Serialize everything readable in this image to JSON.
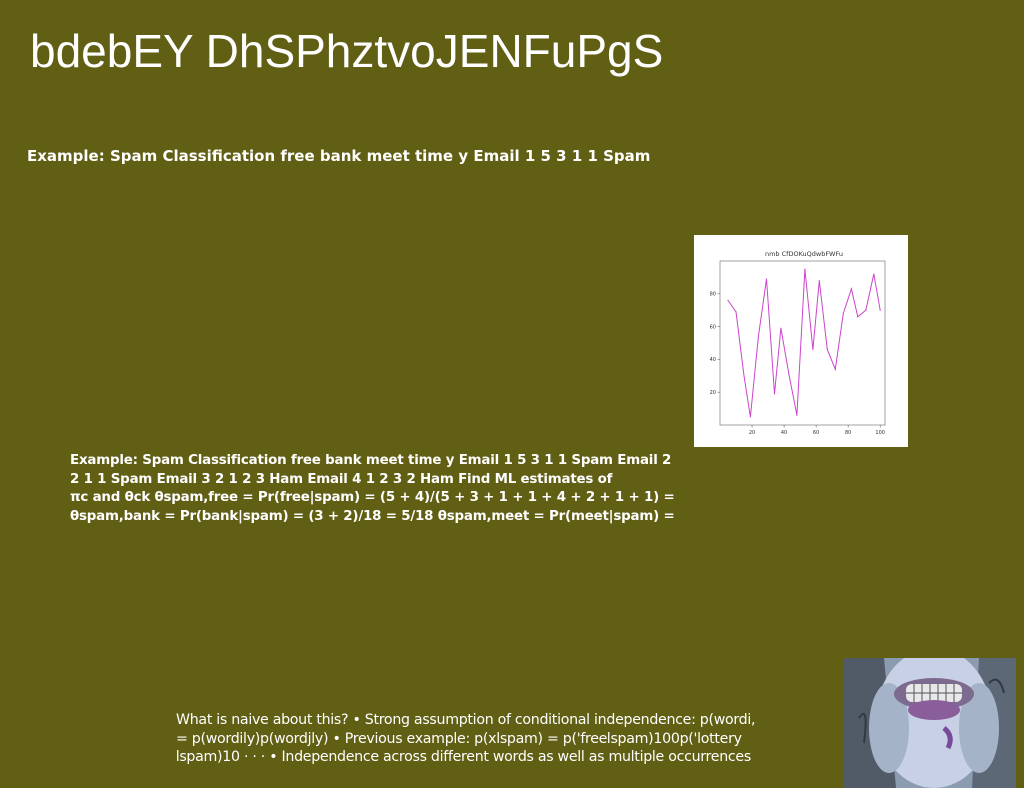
{
  "slide": {
    "title": "bdebEY DhSPhztvoJENFuPgS",
    "subtitle": "Example: Spam Classification free bank meet time y Email 1 5 3 1 1 Spam",
    "body_lines": [
      "Example: Spam Classification free bank meet time y Email 1 5 3 1 1 Spam Email 2",
      "2 1 1 Spam Email 3 2 1 2 3 Ham Email 4 1 2 3 2 Ham Find ML estimates of",
      "πc and θck θspam,free = Pr(free|spam) = (5 + 4)/(5 + 3 + 1 + 1 + 4 + 2 + 1 + 1) =",
      "θspam,bank = Pr(bank|spam) = (3 + 2)/18 = 5/18 θspam,meet = Pr(meet|spam) ="
    ],
    "footer_lines": [
      "What is naive about this? • Strong assumption of conditional independence: p(wordi,",
      "= p(wordily)p(wordjly) • Previous example: p(xlspam) = p('free\u0003lspam)100p('lottery",
      "\u0003lspam)10 · · · • Independence across different words as well as multiple occurrences"
    ]
  },
  "chart_data": {
    "type": "line",
    "title": "nmb CfDOKuQdwbFWFu",
    "line_color": "#cc44cc",
    "x": [
      5,
      10,
      15,
      19,
      24,
      29,
      34,
      38,
      43,
      48,
      53,
      58,
      62,
      67,
      72,
      77,
      82,
      86,
      91,
      96,
      100
    ],
    "y": [
      76,
      69,
      30,
      5,
      54,
      89,
      19,
      59,
      31,
      6,
      95,
      46,
      88,
      46,
      34,
      68,
      83,
      66,
      70,
      92,
      70
    ],
    "xticks": [
      20,
      40,
      60,
      80,
      100
    ],
    "yticks": [
      20,
      40,
      60,
      80
    ],
    "xlim": [
      0,
      103
    ],
    "ylim": [
      0,
      100
    ],
    "grid": false
  }
}
